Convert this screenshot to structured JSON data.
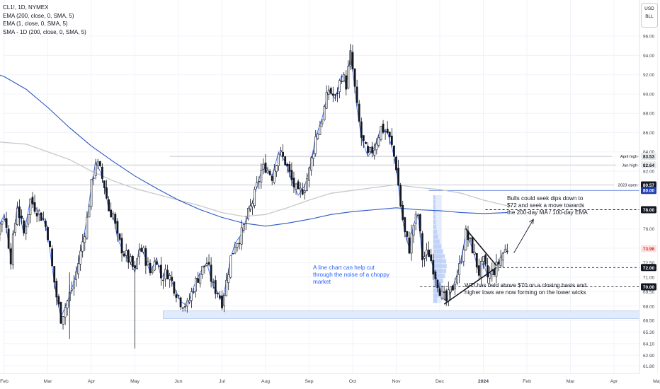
{
  "header": {
    "symbol_line": "CL1!, 1D, NYMEX",
    "indicators": [
      "EMA (200, close, 0, SMA, 5)",
      "EMA (1, close, 0, SMA, 5)",
      "SMA - 1D (200, close, 0, SMA, 5)"
    ]
  },
  "units": {
    "currency": "USD",
    "unit": "BLL"
  },
  "colors": {
    "bull": "#131722",
    "bear": "#131722",
    "ema200": "#2a56c6",
    "sma200": "#c8c8c8",
    "ema1": "#2962ff",
    "label_dark": "#131722",
    "label_blue": "#1e3fad",
    "zone": "#e1ebfb"
  },
  "chart_data": {
    "type": "candlestick",
    "ylim": [
      61.6,
      96.6
    ],
    "yticks": [
      "61.80",
      "62.90",
      "64.10",
      "65.30",
      "66.50",
      "68.00",
      "69.50",
      "71.00",
      "72.50",
      "74.00",
      "76.00",
      "78.00",
      "80.00",
      "82.00",
      "84.00",
      "86.00",
      "88.00",
      "90.00",
      "92.00",
      "94.00",
      "96.00"
    ],
    "ytick_values": [
      61.8,
      62.9,
      64.1,
      65.3,
      66.5,
      68.0,
      69.5,
      71.0,
      72.5,
      74.0,
      76.0,
      78.0,
      80.0,
      82.0,
      84.0,
      86.0,
      88.0,
      90.0,
      92.0,
      94.0,
      96.0
    ],
    "xlabels": [
      "Feb",
      "Mar",
      "Apr",
      "May",
      "Jun",
      "Jul",
      "Aug",
      "Sep",
      "Oct",
      "Nov",
      "Dec",
      "2024",
      "Feb",
      "Mar",
      "Apr",
      "May"
    ],
    "xlabel_positions": [
      0,
      1,
      2,
      3,
      4,
      5,
      6,
      7,
      8,
      9,
      10,
      11,
      12,
      13,
      14,
      15
    ],
    "last_candle_index": 11.55,
    "price_anchors": [
      [
        -0.6,
        81.5
      ],
      [
        -0.4,
        79.5
      ],
      [
        -0.2,
        75.5
      ],
      [
        0.0,
        77.5
      ],
      [
        0.15,
        73.0
      ],
      [
        0.3,
        78.5
      ],
      [
        0.45,
        75.5
      ],
      [
        0.6,
        79.0
      ],
      [
        0.75,
        78.0
      ],
      [
        0.9,
        77.0
      ],
      [
        1.0,
        75.5
      ],
      [
        1.1,
        72.0
      ],
      [
        1.2,
        69.0
      ],
      [
        1.3,
        66.8
      ],
      [
        1.45,
        68.5
      ],
      [
        1.6,
        70.5
      ],
      [
        1.75,
        73.5
      ],
      [
        1.9,
        77.0
      ],
      [
        2.0,
        80.5
      ],
      [
        2.1,
        83.0
      ],
      [
        2.2,
        82.0
      ],
      [
        2.3,
        80.5
      ],
      [
        2.4,
        78.0
      ],
      [
        2.5,
        77.5
      ],
      [
        2.6,
        75.0
      ],
      [
        2.75,
        73.5
      ],
      [
        2.9,
        72.5
      ],
      [
        3.0,
        71.5
      ],
      [
        3.1,
        74.0
      ],
      [
        3.2,
        73.5
      ],
      [
        3.35,
        71.5
      ],
      [
        3.5,
        73.0
      ],
      [
        3.6,
        71.0
      ],
      [
        3.75,
        71.5
      ],
      [
        3.9,
        70.0
      ],
      [
        4.05,
        68.5
      ],
      [
        4.2,
        68.0
      ],
      [
        4.35,
        70.0
      ],
      [
        4.5,
        71.5
      ],
      [
        4.65,
        72.5
      ],
      [
        4.8,
        70.0
      ],
      [
        4.9,
        69.5
      ],
      [
        5.0,
        68.5
      ],
      [
        5.1,
        70.5
      ],
      [
        5.2,
        73.0
      ],
      [
        5.3,
        74.5
      ],
      [
        5.45,
        75.5
      ],
      [
        5.6,
        77.5
      ],
      [
        5.75,
        79.5
      ],
      [
        5.9,
        82.0
      ],
      [
        6.0,
        82.5
      ],
      [
        6.15,
        81.5
      ],
      [
        6.3,
        84.0
      ],
      [
        6.45,
        83.0
      ],
      [
        6.6,
        81.0
      ],
      [
        6.75,
        79.5
      ],
      [
        6.9,
        80.5
      ],
      [
        7.0,
        82.0
      ],
      [
        7.15,
        85.5
      ],
      [
        7.3,
        87.5
      ],
      [
        7.45,
        90.5
      ],
      [
        7.6,
        89.5
      ],
      [
        7.75,
        92.0
      ],
      [
        7.85,
        91.0
      ],
      [
        7.95,
        94.0
      ],
      [
        8.0,
        92.5
      ],
      [
        8.1,
        88.5
      ],
      [
        8.2,
        85.5
      ],
      [
        8.35,
        83.5
      ],
      [
        8.5,
        84.5
      ],
      [
        8.65,
        86.5
      ],
      [
        8.8,
        86.0
      ],
      [
        8.9,
        84.5
      ],
      [
        9.0,
        82.5
      ],
      [
        9.1,
        78.5
      ],
      [
        9.2,
        75.5
      ],
      [
        9.3,
        74.0
      ],
      [
        9.4,
        76.5
      ],
      [
        9.5,
        77.5
      ],
      [
        9.6,
        73.0
      ],
      [
        9.75,
        73.5
      ],
      [
        9.85,
        72.0
      ],
      [
        9.95,
        70.5
      ],
      [
        10.05,
        69.0
      ],
      [
        10.15,
        68.5
      ],
      [
        10.3,
        70.0
      ],
      [
        10.45,
        72.0
      ],
      [
        10.6,
        75.5
      ],
      [
        10.75,
        74.0
      ],
      [
        10.9,
        71.5
      ],
      [
        11.0,
        72.5
      ],
      [
        11.1,
        71.0
      ],
      [
        11.2,
        71.5
      ],
      [
        11.3,
        72.0
      ],
      [
        11.45,
        73.5
      ],
      [
        11.55,
        73.96
      ]
    ],
    "sma200": [
      [
        -0.6,
        85.2
      ],
      [
        0.5,
        84.8
      ],
      [
        1.5,
        83.2
      ],
      [
        2.0,
        82.0
      ],
      [
        2.5,
        81.0
      ],
      [
        3.0,
        80.2
      ],
      [
        3.5,
        79.6
      ],
      [
        4.0,
        79.0
      ],
      [
        4.5,
        78.4
      ],
      [
        5.0,
        77.7
      ],
      [
        5.5,
        77.3
      ],
      [
        6.0,
        77.5
      ],
      [
        6.5,
        78.2
      ],
      [
        7.0,
        79.0
      ],
      [
        7.5,
        79.7
      ],
      [
        8.0,
        80.0
      ],
      [
        8.5,
        80.3
      ],
      [
        9.0,
        80.6
      ],
      [
        9.5,
        80.3
      ],
      [
        10.0,
        80.1
      ],
      [
        10.5,
        79.7
      ],
      [
        11.0,
        79.0
      ],
      [
        11.55,
        78.4
      ]
    ],
    "ema200": [
      [
        -0.6,
        92.8
      ],
      [
        0.0,
        91.8
      ],
      [
        0.5,
        90.5
      ],
      [
        1.0,
        88.6
      ],
      [
        1.5,
        86.5
      ],
      [
        2.0,
        84.6
      ],
      [
        2.5,
        83.0
      ],
      [
        3.0,
        81.5
      ],
      [
        3.5,
        80.2
      ],
      [
        4.0,
        79.0
      ],
      [
        4.5,
        78.0
      ],
      [
        5.0,
        77.2
      ],
      [
        5.5,
        76.6
      ],
      [
        6.0,
        76.3
      ],
      [
        6.5,
        76.6
      ],
      [
        7.0,
        77.0
      ],
      [
        7.5,
        77.5
      ],
      [
        8.0,
        77.8
      ],
      [
        8.5,
        78.0
      ],
      [
        9.0,
        78.2
      ],
      [
        9.5,
        78.0
      ],
      [
        10.0,
        77.9
      ],
      [
        10.5,
        77.7
      ],
      [
        11.0,
        77.6
      ],
      [
        11.55,
        77.7
      ]
    ],
    "price_labels": [
      {
        "text": "83.53",
        "value": 83.53,
        "style": "light",
        "caption": "April high"
      },
      {
        "text": "82.64",
        "value": 82.64,
        "style": "light",
        "caption": "Jan high"
      },
      {
        "text": "80.57",
        "value": 80.57,
        "style": "dark",
        "caption": "2023 open"
      },
      {
        "text": "80.00",
        "value": 80.0,
        "style": "blue",
        "caption": ""
      },
      {
        "text": "78.00",
        "value": 78.0,
        "style": "dark",
        "caption": ""
      },
      {
        "text": "73.96",
        "value": 73.96,
        "style": "red",
        "caption": ""
      },
      {
        "text": "72.00",
        "value": 72.0,
        "style": "dark",
        "caption": ""
      },
      {
        "text": "70.00",
        "value": 70.0,
        "style": "dark",
        "caption": ""
      }
    ],
    "support_zone": [
      66.7,
      67.5
    ],
    "hlines": [
      {
        "value": 83.53,
        "x_from": 3.8,
        "style": "gray"
      },
      {
        "value": 82.64,
        "x_from": -0.6,
        "style": "gray"
      },
      {
        "value": 80.57,
        "x_from": -0.6,
        "style": "gray"
      },
      {
        "value": 80.0,
        "x_from": 9.75,
        "style": "blue"
      },
      {
        "value": 78.0,
        "x_from": 11.05,
        "style": "dash"
      },
      {
        "value": 72.0,
        "x_from": 11.35,
        "style": "dash"
      },
      {
        "value": 70.0,
        "x_from": 9.55,
        "style": "dash"
      }
    ],
    "triangle": {
      "upper": [
        [
          10.6,
          76.0
        ],
        [
          11.3,
          72.2
        ]
      ],
      "lower": [
        [
          10.1,
          68.2
        ],
        [
          11.3,
          72.0
        ]
      ]
    },
    "arrow": {
      "from": [
        11.7,
        73.5
      ],
      "to": [
        12.15,
        77.0
      ]
    },
    "annotations": {
      "bulls": [
        "Bulls could seek dips down to",
        "$72 and seek a move towards",
        "the 200-day MA / 100-day EMA"
      ],
      "line_chart": [
        "A line chart can help cut",
        "through the noise of a choppy",
        "market"
      ],
      "wti": [
        "WTI has held above $70 on a closing basis and",
        "higher lows are now forming on the lower wicks"
      ]
    }
  }
}
